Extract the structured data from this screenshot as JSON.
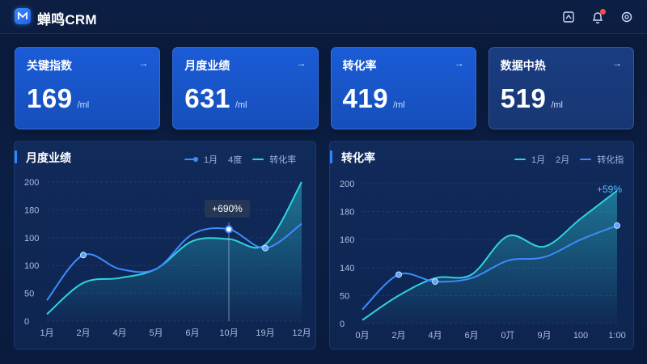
{
  "app": {
    "title": "蝉鸣CRM"
  },
  "header_icons": [
    {
      "name": "dashboard-icon"
    },
    {
      "name": "bell-icon",
      "has_badge": true
    },
    {
      "name": "settings-icon"
    }
  ],
  "kpis": [
    {
      "label": "关键指数",
      "value": "169",
      "unit": "/ml",
      "arrow": "→"
    },
    {
      "label": "月度业绩",
      "value": "631",
      "unit": "/ml",
      "arrow": "→"
    },
    {
      "label": "转化率",
      "value": "419",
      "unit": "/ml",
      "arrow": "→"
    },
    {
      "label": "数据中热",
      "value": "519",
      "unit": "/ml",
      "arrow": "→"
    }
  ],
  "left_panel": {
    "title": "月度业绩",
    "legend": [
      "1月",
      "4度",
      "转化率"
    ],
    "tooltip": "+690%"
  },
  "right_panel": {
    "title": "转化率",
    "legend": [
      "1月",
      "2月",
      "转化指"
    ],
    "annotation": "+59%"
  },
  "colors": {
    "accent": "#2f86ff",
    "teal": "#2fd3e0",
    "blue": "#3d8bff",
    "bg": "#0b1f45"
  },
  "chart_data": [
    {
      "type": "line",
      "title": "月度业绩",
      "x": [
        "1月",
        "2月",
        "4月",
        "5月",
        "6月",
        "10月",
        "19月",
        "12月"
      ],
      "y_ticks": [
        "200",
        "180",
        "100",
        "100",
        "50",
        "0"
      ],
      "series": [
        {
          "name": "1月",
          "values": [
            30,
            95,
            75,
            75,
            125,
            132,
            105,
            140
          ]
        },
        {
          "name": "转化率",
          "values": [
            10,
            55,
            62,
            75,
            115,
            118,
            110,
            200
          ]
        }
      ]
    },
    {
      "type": "line",
      "title": "转化率",
      "x": [
        "0月",
        "2月",
        "4月",
        "6月",
        "0丌",
        "9月",
        "100",
        "1:00"
      ],
      "y_ticks": [
        "200",
        "180",
        "160",
        "140",
        "50",
        "0"
      ],
      "series": [
        {
          "name": "1月",
          "values": [
            20,
            70,
            60,
            65,
            90,
            95,
            120,
            140
          ]
        },
        {
          "name": "转化指",
          "values": [
            5,
            40,
            65,
            70,
            125,
            110,
            150,
            190
          ]
        }
      ]
    }
  ]
}
